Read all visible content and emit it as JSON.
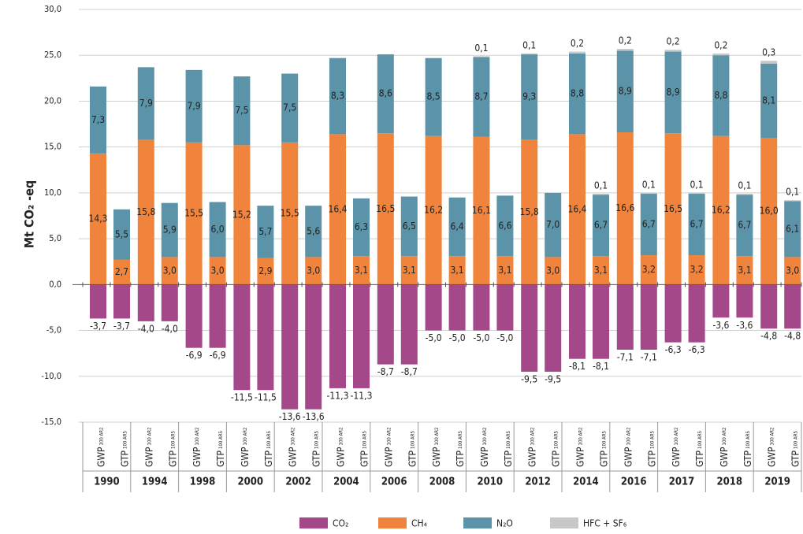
{
  "chart_data": {
    "type": "bar",
    "stacked": true,
    "y_label": "Mt CO₂ -eq",
    "groups": [
      "1990",
      "1994",
      "1998",
      "2000",
      "2002",
      "2004",
      "2006",
      "2008",
      "2010",
      "2012",
      "2014",
      "2016",
      "2017",
      "2018",
      "2019"
    ],
    "subcategories": [
      {
        "name": "GWP",
        "sub": "100 AR2"
      },
      {
        "name": "GTP",
        "sub": "100 AR5"
      }
    ],
    "ylim": [
      -15,
      30
    ],
    "yticks": [
      {
        "value": -15,
        "label": "-15,0"
      },
      {
        "value": -10,
        "label": "-10,0"
      },
      {
        "value": -5,
        "label": "-5,0"
      },
      {
        "value": 0,
        "label": "0,0"
      },
      {
        "value": 5,
        "label": "5,0"
      },
      {
        "value": 10,
        "label": "10,0"
      },
      {
        "value": 15,
        "label": "15,0"
      },
      {
        "value": 20,
        "label": "20,0"
      },
      {
        "value": 25,
        "label": "25,0"
      },
      {
        "value": 30,
        "label": "30,0"
      }
    ],
    "grid": true,
    "legend": "bottom",
    "series": [
      {
        "name": "CO₂",
        "color": "#a4488a",
        "values": [
          -3.7,
          -3.7,
          -4.0,
          -4.0,
          -6.9,
          -6.9,
          -11.5,
          -11.5,
          -13.6,
          -13.6,
          -11.3,
          -11.3,
          -8.7,
          -8.7,
          -5.0,
          -5.0,
          -5.0,
          -5.0,
          -9.5,
          -9.5,
          -8.1,
          -8.1,
          -7.1,
          -7.1,
          -6.3,
          -6.3,
          -3.6,
          -3.6,
          -4.8,
          -4.8
        ],
        "value_labels": [
          "-3,7",
          "-3,7",
          "-4,0",
          "-4,0",
          "-6,9",
          "-6,9",
          "-11,5",
          "-11,5",
          "-13,6",
          "-13,6",
          "-11,3",
          "-11,3",
          "-8,7",
          "-8,7",
          "-5,0",
          "-5,0",
          "-5,0",
          "-5,0",
          "-9,5",
          "-9,5",
          "-8,1",
          "-8,1",
          "-7,1",
          "-7,1",
          "-6,3",
          "-6,3",
          "-3,6",
          "-3,6",
          "-4,8",
          "-4,8"
        ]
      },
      {
        "name": "CH₄",
        "color": "#f0843c",
        "values": [
          14.3,
          2.7,
          15.8,
          3.0,
          15.5,
          3.0,
          15.2,
          2.9,
          15.5,
          3.0,
          16.4,
          3.1,
          16.5,
          3.1,
          16.2,
          3.1,
          16.1,
          3.1,
          15.8,
          3.0,
          16.4,
          3.1,
          16.6,
          3.2,
          16.5,
          3.2,
          16.2,
          3.1,
          16.0,
          3.0
        ],
        "value_labels": [
          "14,3",
          "2,7",
          "15,8",
          "3,0",
          "15,5",
          "3,0",
          "15,2",
          "2,9",
          "15,5",
          "3,0",
          "16,4",
          "3,1",
          "16,5",
          "3,1",
          "16,2",
          "3,1",
          "16,1",
          "3,1",
          "15,8",
          "3,0",
          "16,4",
          "3,1",
          "16,6",
          "3,2",
          "16,5",
          "3,2",
          "16,2",
          "3,1",
          "16,0",
          "3,0"
        ]
      },
      {
        "name": "N₂O",
        "color": "#5b93a8",
        "values": [
          7.3,
          5.5,
          7.9,
          5.9,
          7.9,
          6.0,
          7.5,
          5.7,
          7.5,
          5.6,
          8.3,
          6.3,
          8.6,
          6.5,
          8.5,
          6.4,
          8.7,
          6.6,
          9.3,
          7.0,
          8.8,
          6.7,
          8.9,
          6.7,
          8.9,
          6.7,
          8.8,
          6.7,
          8.1,
          6.1
        ],
        "value_labels": [
          "7,3",
          "5,5",
          "7,9",
          "5,9",
          "7,9",
          "6,0",
          "7,5",
          "5,7",
          "7,5",
          "5,6",
          "8,3",
          "6,3",
          "8,6",
          "6,5",
          "8,5",
          "6,4",
          "8,7",
          "6,6",
          "9,3",
          "7,0",
          "8,8",
          "6,7",
          "8,9",
          "6,7",
          "8,9",
          "6,7",
          "8,8",
          "6,7",
          "8,1",
          "6,1"
        ]
      },
      {
        "name": "HFC + SF₆",
        "color": "#c8c8c8",
        "values": [
          null,
          null,
          null,
          null,
          null,
          null,
          null,
          null,
          null,
          null,
          null,
          null,
          null,
          null,
          null,
          null,
          0.1,
          null,
          0.1,
          null,
          0.2,
          0.1,
          0.2,
          0.1,
          0.2,
          0.1,
          0.2,
          0.1,
          0.3,
          0.1
        ],
        "value_labels": [
          null,
          null,
          null,
          null,
          null,
          null,
          null,
          null,
          null,
          null,
          null,
          null,
          null,
          null,
          null,
          null,
          "0,1",
          null,
          "0,1",
          null,
          "0,2",
          "0,1",
          "0,2",
          "0,1",
          "0,2",
          "0,1",
          "0,2",
          "0,1",
          "0,3",
          "0,1"
        ]
      }
    ]
  }
}
